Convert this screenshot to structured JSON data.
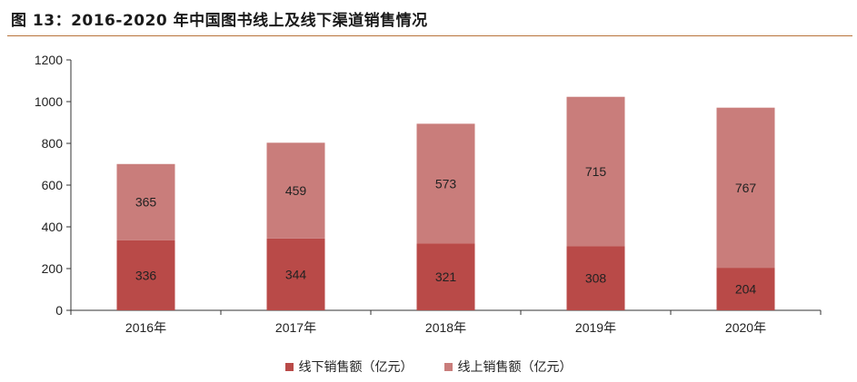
{
  "title": "图 13：2016-2020 年中国图书线上及线下渠道销售情况",
  "colors": {
    "offline": "#b94a48",
    "online": "#c97d7b",
    "rule": "#b8733a"
  },
  "chart_data": {
    "type": "bar",
    "stacked": true,
    "categories": [
      "2016年",
      "2017年",
      "2018年",
      "2019年",
      "2020年"
    ],
    "series": [
      {
        "name": "线下销售额（亿元）",
        "values": [
          336,
          344,
          321,
          308,
          204
        ]
      },
      {
        "name": "线上销售额（亿元）",
        "values": [
          365,
          459,
          573,
          715,
          767
        ]
      }
    ],
    "ylim": [
      0,
      1200
    ],
    "yticks": [
      0,
      200,
      400,
      600,
      800,
      1000,
      1200
    ],
    "ytick_labels": [
      "0",
      "200",
      "400",
      "600",
      "800",
      "1000",
      "1200"
    ],
    "legend_position": "bottom",
    "grid": false
  }
}
